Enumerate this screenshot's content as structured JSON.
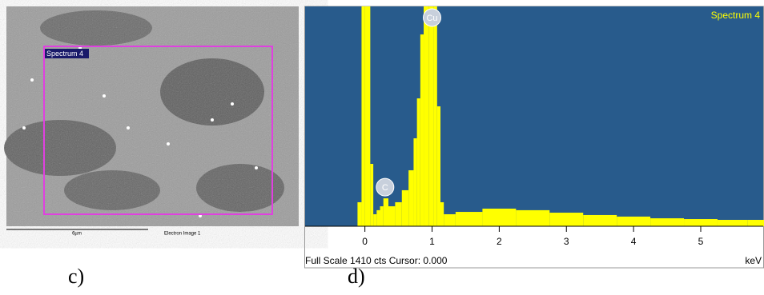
{
  "panel_c": {
    "caption": "c)",
    "region_label": "Spectrum 4",
    "scale_label": "6µm",
    "image_label": "Electron Image 1"
  },
  "chart_data": {
    "type": "histogram",
    "title": "Spectrum 4",
    "caption": "d)",
    "x_label": "keV",
    "footer": "Full Scale 1410 cts Cursor: 0.000",
    "x": [
      -0.08,
      -0.02,
      0.02,
      0.06,
      0.1,
      0.15,
      0.2,
      0.25,
      0.3,
      0.4,
      0.5,
      0.6,
      0.7,
      0.75,
      0.8,
      0.85,
      0.9,
      1.0,
      1.05,
      1.1,
      1.15,
      1.2,
      1.5,
      2.0,
      2.5,
      3.0,
      3.5,
      4.0,
      4.5,
      5.0,
      5.5,
      5.9
    ],
    "values": [
      154,
      1410,
      1410,
      1410,
      400,
      77,
      103,
      128,
      179,
      128,
      154,
      231,
      359,
      564,
      820,
      1230,
      1410,
      1410,
      1410,
      769,
      154,
      77,
      92,
      113,
      103,
      87,
      72,
      62,
      51,
      46,
      41,
      41
    ],
    "color": "#ffff00",
    "background": "#285b8c",
    "xlim": [
      -0.89,
      5.93
    ],
    "ylim": [
      0,
      1410
    ],
    "xticks": [
      0,
      1,
      2,
      3,
      4,
      5
    ],
    "annotations": [
      {
        "text": "Cu",
        "x": 1.0
      },
      {
        "text": "C",
        "x": 0.3
      }
    ]
  }
}
